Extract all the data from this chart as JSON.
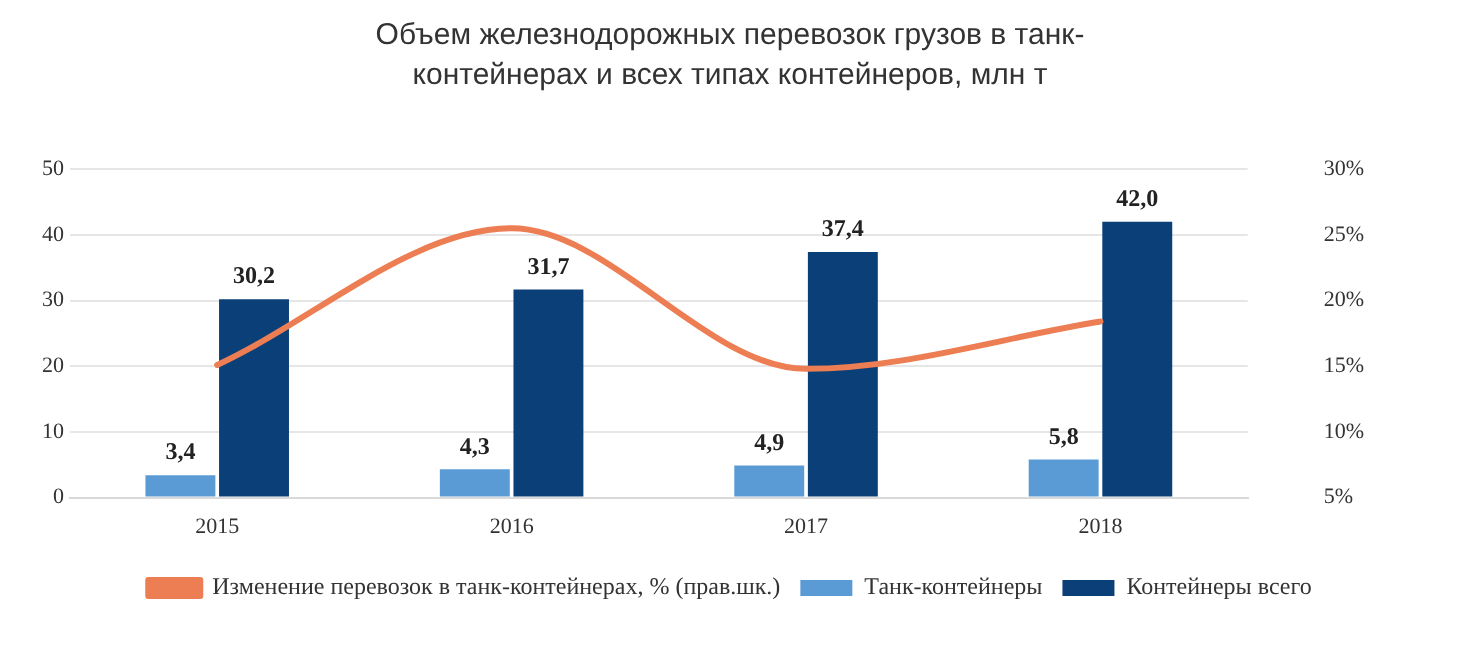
{
  "chart_data": {
    "type": "bar",
    "title": "Объем железнодорожных перевозок грузов в танк-контейнерах и всех типах контейнеров, млн т",
    "categories": [
      "2015",
      "2016",
      "2017",
      "2018"
    ],
    "series": [
      {
        "name": "Танк-контейнеры",
        "color": "#5b9bd5",
        "values": [
          3.4,
          4.3,
          4.9,
          5.8
        ],
        "value_labels": [
          "3,4",
          "4,3",
          "4,9",
          "5,8"
        ]
      },
      {
        "name": "Контейнеры всего",
        "color": "#0b3f78",
        "values": [
          30.2,
          31.7,
          37.4,
          42.0
        ],
        "value_labels": [
          "30,2",
          "31,7",
          "37,4",
          "42,0"
        ]
      },
      {
        "name": "Изменение перевозок в танк-контейнерах, % (прав.шк.)",
        "type": "line",
        "axis": "y2",
        "color": "#ed7d52",
        "values": [
          15.1,
          25.5,
          14.8,
          18.4
        ]
      }
    ],
    "ylim": [
      0,
      50
    ],
    "yticks": [
      0,
      10,
      20,
      30,
      40,
      50
    ],
    "y2lim": [
      5,
      30
    ],
    "y2ticks": [
      {
        "value": 5,
        "label": "5%"
      },
      {
        "value": 10,
        "label": "10%"
      },
      {
        "value": 15,
        "label": "15%"
      },
      {
        "value": 20,
        "label": "20%"
      },
      {
        "value": 25,
        "label": "25%"
      },
      {
        "value": 30,
        "label": "30%"
      }
    ],
    "grid": "y",
    "legend": "bottom",
    "marker": "none",
    "line_style": "solid"
  }
}
